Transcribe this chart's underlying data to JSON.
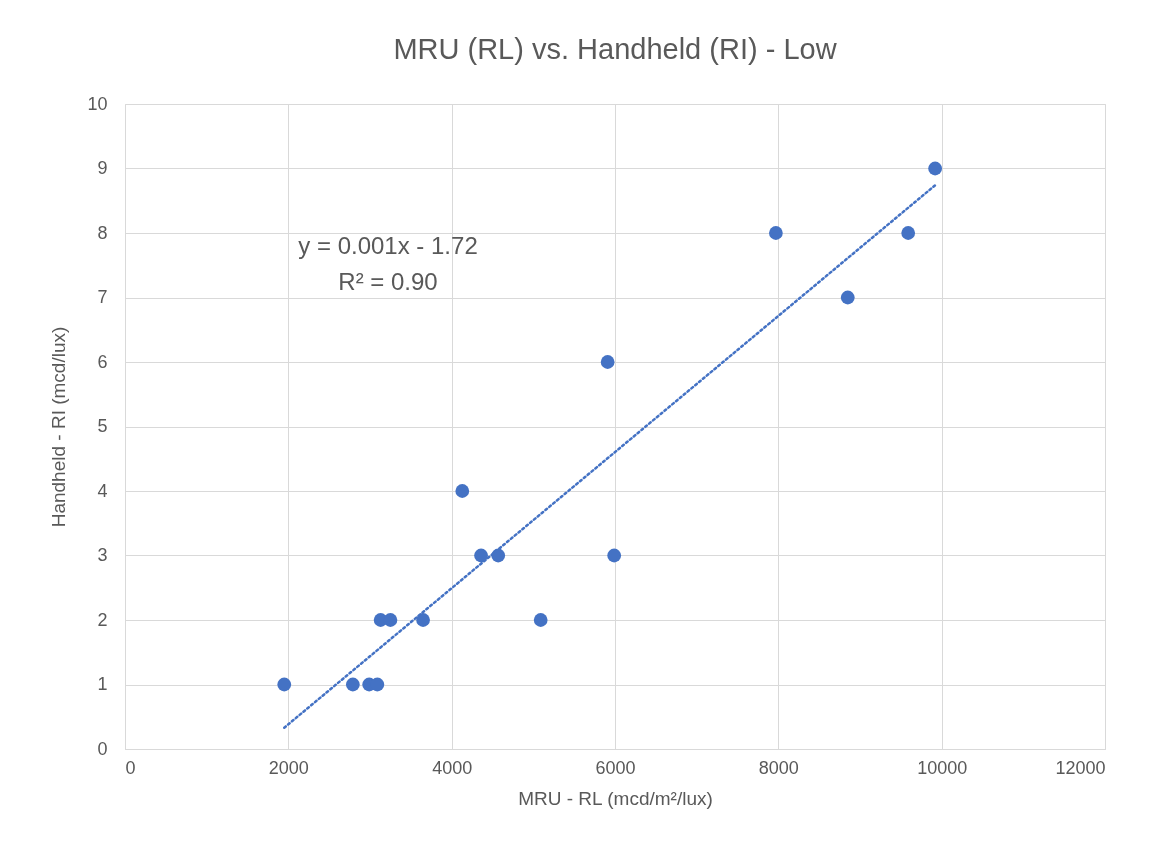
{
  "chart_data": {
    "type": "scatter",
    "title": "MRU (RL) vs. Handheld (RI) - Low",
    "xlabel": "MRU - RL (mcd/m²/lux)",
    "ylabel": "Handheld - RI (mcd/lux)",
    "xlim": [
      0,
      12000
    ],
    "xticks": [
      0,
      2000,
      4000,
      6000,
      8000,
      10000,
      12000
    ],
    "ylim": [
      0,
      10
    ],
    "yticks": [
      0,
      1,
      2,
      3,
      4,
      5,
      6,
      7,
      8,
      9,
      10
    ],
    "grid": true,
    "marker": "circle",
    "annotations": [
      "y = 0.001x - 1.72",
      "R² = 0.90"
    ],
    "series": [
      {
        "color": "#4472c4",
        "x": [
          1950,
          2790,
          2990,
          3090,
          3130,
          3250,
          3650,
          4130,
          4360,
          4570,
          5090,
          5910,
          5990,
          7970,
          8850,
          9590,
          9920
        ],
        "values": [
          1,
          1,
          1,
          1,
          2,
          2,
          2,
          4,
          3,
          3,
          2,
          6,
          3,
          8,
          7,
          8,
          9
        ]
      },
      {
        "type": "line",
        "color": "#4472c4",
        "line_style": "dotted",
        "marker": "none",
        "x": [
          1950,
          9920
        ],
        "values": [
          0.33,
          8.74
        ]
      }
    ]
  }
}
